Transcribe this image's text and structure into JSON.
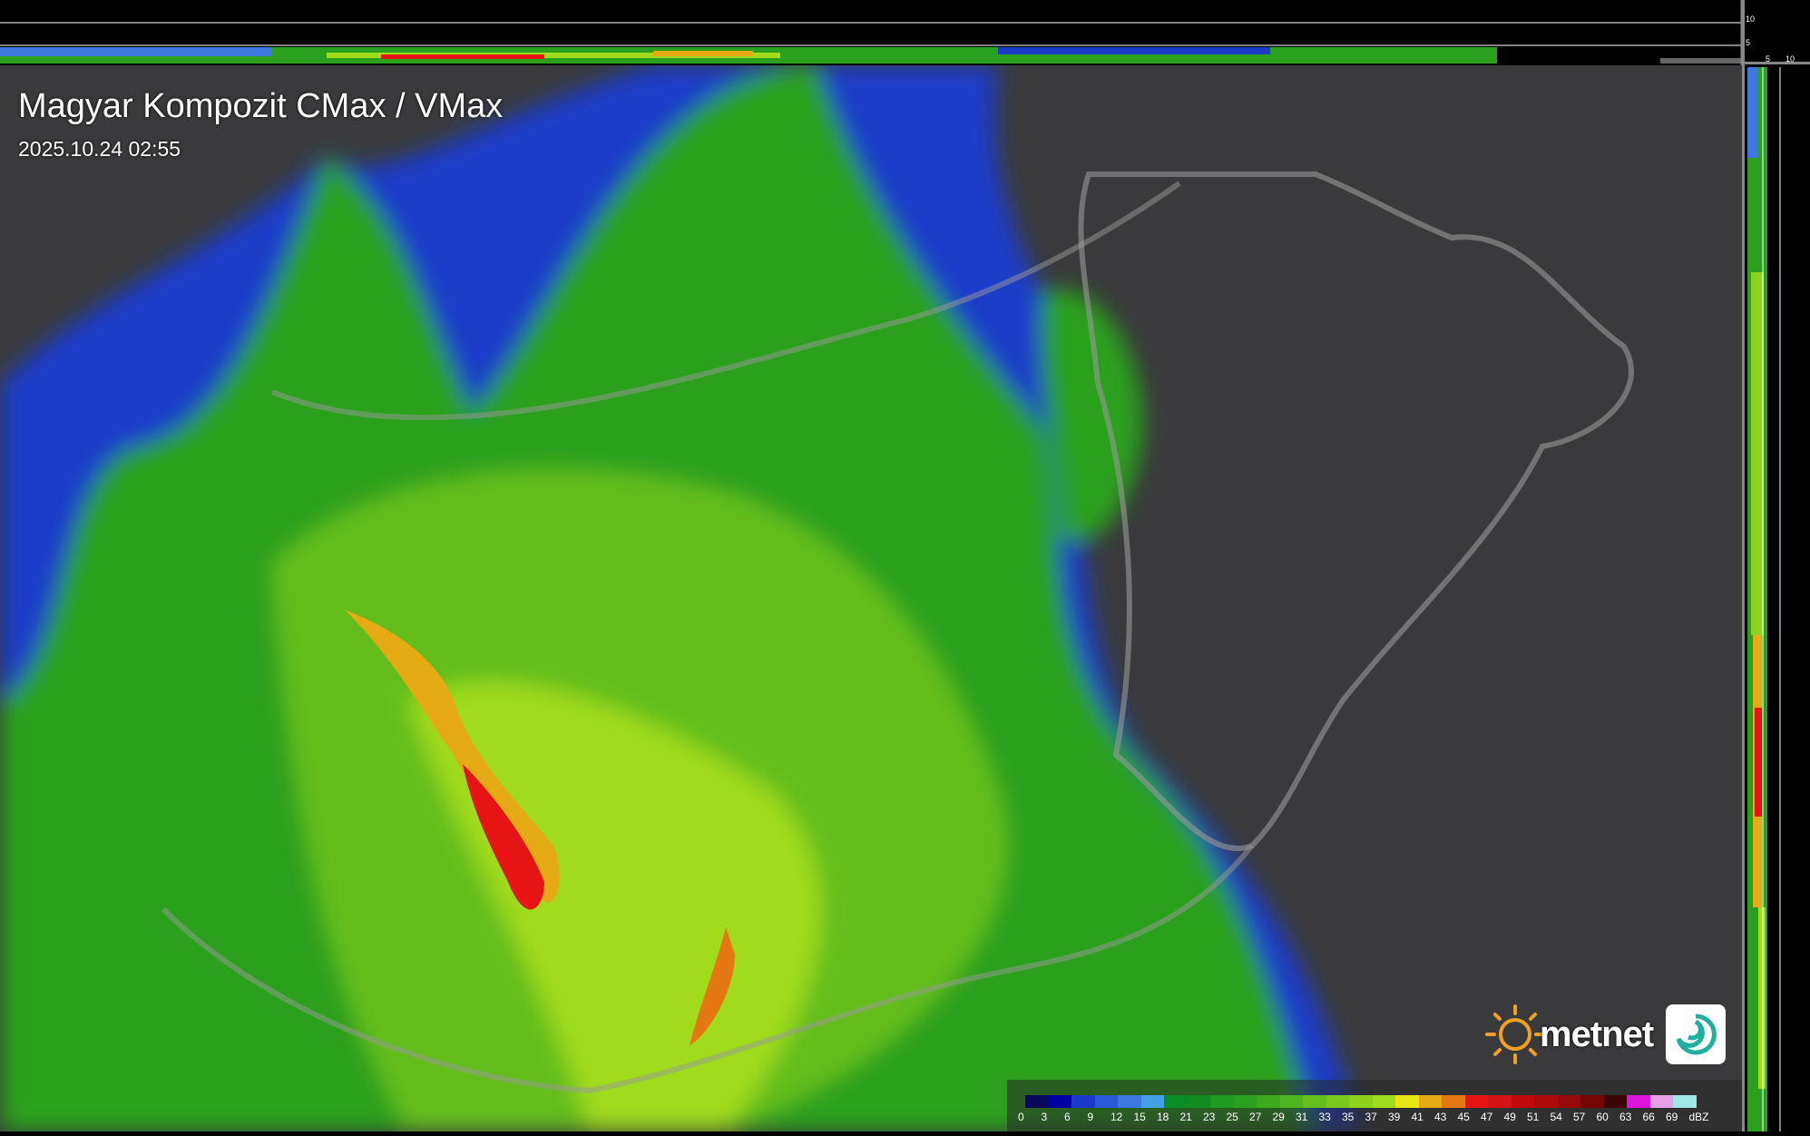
{
  "title": "Magyar Kompozit CMax / VMax",
  "timestamp": "2025.10.24 02:55",
  "logo": {
    "text": "metnet",
    "icon": "sun-icon",
    "badge_icon": "swirl-icon",
    "accent": "#f0a020"
  },
  "side_scale": {
    "top_labels": [
      "10",
      "5"
    ],
    "right_labels": [
      "5",
      "10"
    ]
  },
  "legend": {
    "unit": "dBZ",
    "labels": [
      "0",
      "3",
      "6",
      "9",
      "12",
      "15",
      "18",
      "21",
      "23",
      "25",
      "27",
      "29",
      "31",
      "33",
      "35",
      "37",
      "39",
      "41",
      "43",
      "45",
      "47",
      "49",
      "51",
      "54",
      "57",
      "60",
      "63",
      "66",
      "69"
    ],
    "colors": [
      "#0a0a5a",
      "#0000a0",
      "#1a3cc8",
      "#2a5ad8",
      "#3c78e0",
      "#46a0e6",
      "#0a8c28",
      "#128c1e",
      "#1e9a1e",
      "#2aa01e",
      "#3caa1e",
      "#50b41e",
      "#64be1e",
      "#78c81e",
      "#8cd21e",
      "#a0dc1e",
      "#e6e614",
      "#e6aa14",
      "#e67814",
      "#e61414",
      "#d21414",
      "#be0a0a",
      "#aa0a0a",
      "#960a0a",
      "#780505",
      "#3c0505",
      "#dc14dc",
      "#e6a0e6",
      "#a0e6e6"
    ]
  }
}
